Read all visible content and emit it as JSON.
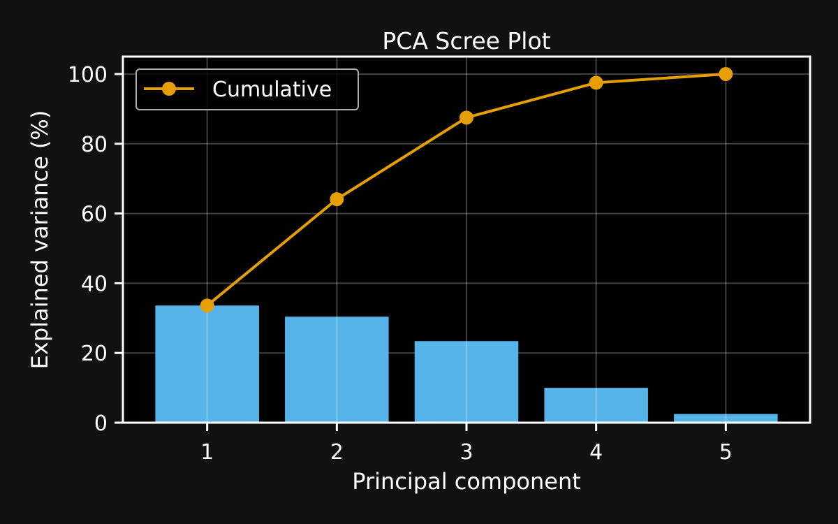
{
  "colors": {
    "figure_background": "#111111",
    "plot_background": "#000000",
    "bar": "#56b4e9",
    "line": "#e69f00",
    "axes": "#ffffff",
    "grid": "#ffffff",
    "legend_border": "#aaaaaa"
  },
  "chart_data": {
    "type": "bar",
    "title": "PCA Scree Plot",
    "xlabel": "Principal component",
    "ylabel": "Explained variance (%)",
    "categories": [
      "1",
      "2",
      "3",
      "4",
      "5"
    ],
    "x": [
      1,
      2,
      3,
      4,
      5
    ],
    "xlim": [
      0.35,
      5.65
    ],
    "ylim": [
      0,
      105
    ],
    "yticks": [
      0,
      20,
      40,
      60,
      80,
      100
    ],
    "ytick_labels": [
      "0",
      "20",
      "40",
      "60",
      "80",
      "100"
    ],
    "grid": true,
    "legend_position": "upper-left",
    "series": [
      {
        "kind": "bar",
        "values": [
          33.6,
          30.4,
          23.4,
          10.0,
          2.5
        ]
      },
      {
        "kind": "line",
        "name": "Cumulative",
        "marker": "circle",
        "values": [
          33.6,
          64.1,
          87.5,
          97.5,
          100.0
        ]
      }
    ]
  }
}
